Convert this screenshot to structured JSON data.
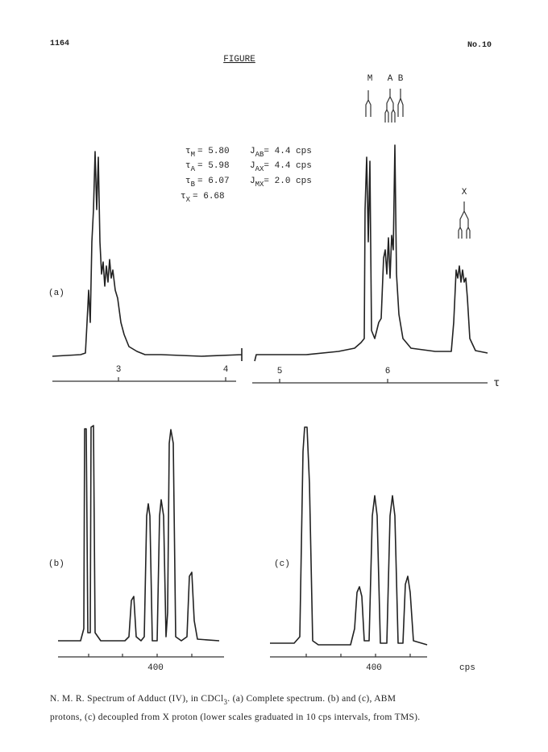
{
  "header": {
    "page": "1164",
    "issue": "No.10",
    "figure_title": "FIGURE"
  },
  "multiplet_labels": {
    "m": "M",
    "a": "A",
    "b": "B",
    "x": "X"
  },
  "shifts": [
    {
      "symbol": "τ",
      "sub": "M",
      "value": "= 5.80"
    },
    {
      "symbol": "τ",
      "sub": "A",
      "value": "= 5.98"
    },
    {
      "symbol": "τ",
      "sub": "B",
      "value": "= 6.07"
    },
    {
      "symbol": "τ",
      "sub": "X",
      "value": "= 6.68"
    }
  ],
  "couplings": [
    {
      "symbol": "J",
      "sub": "AB",
      "value": "= 4.4 cps"
    },
    {
      "symbol": "J",
      "sub": "AX",
      "value": "= 4.4 cps"
    },
    {
      "symbol": "J",
      "sub": "MX",
      "value": "= 2.0 cps"
    }
  ],
  "panels": {
    "a": "(a)",
    "b": "(b)",
    "c": "(c)"
  },
  "scale_a": {
    "ticks": [
      "3",
      "4",
      "5",
      "6"
    ],
    "unit": "τ"
  },
  "scale_b": {
    "tick": "400"
  },
  "scale_c": {
    "tick": "400",
    "unit": "cps"
  },
  "caption": {
    "line1_pre": "N. M. R. Spectrum of Adduct (IV), in CDCl",
    "line1_sub": "3",
    "line1_post": ".  (a) Complete spectrum.  (b) and (c), ABM",
    "line2": "protons, (c) decoupled from X proton (lower scales graduated in 10 cps intervals, from TMS)."
  }
}
